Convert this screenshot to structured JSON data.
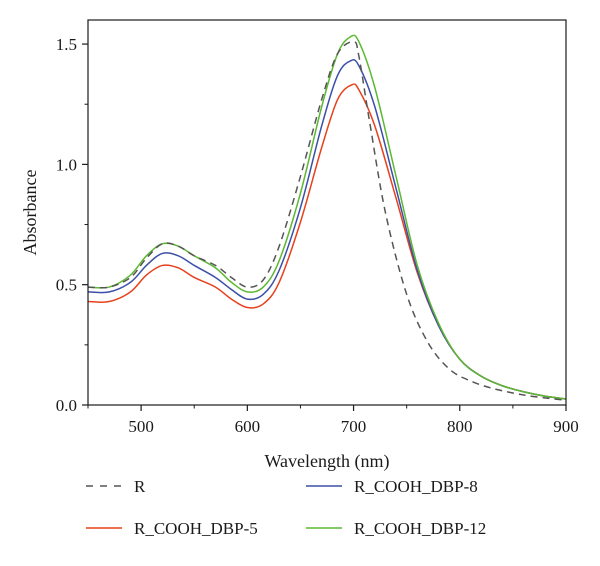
{
  "chart_data": {
    "type": "line",
    "xlabel": "Wavelength (nm)",
    "ylabel": "Absorbance",
    "xlim": [
      450,
      900
    ],
    "ylim": [
      0.0,
      1.6
    ],
    "xticks": [
      500,
      600,
      700,
      800,
      900
    ],
    "xtick_labels": [
      "500",
      "600",
      "700",
      "800",
      "900"
    ],
    "yticks": [
      0.0,
      0.5,
      1.0,
      1.5
    ],
    "ytick_labels": [
      "0.0",
      "0.5",
      "1.0",
      "1.5"
    ],
    "grid": false,
    "legend_position": "bottom",
    "series": [
      {
        "name": "R",
        "color": "#555555",
        "style": "dashed",
        "points": [
          [
            450,
            0.49
          ],
          [
            470,
            0.49
          ],
          [
            490,
            0.53
          ],
          [
            505,
            0.61
          ],
          [
            520,
            0.67
          ],
          [
            535,
            0.66
          ],
          [
            550,
            0.62
          ],
          [
            570,
            0.58
          ],
          [
            585,
            0.53
          ],
          [
            600,
            0.49
          ],
          [
            615,
            0.52
          ],
          [
            630,
            0.66
          ],
          [
            650,
            0.95
          ],
          [
            670,
            1.27
          ],
          [
            685,
            1.46
          ],
          [
            700,
            1.51
          ],
          [
            705,
            1.45
          ],
          [
            715,
            1.18
          ],
          [
            730,
            0.8
          ],
          [
            750,
            0.46
          ],
          [
            770,
            0.26
          ],
          [
            790,
            0.15
          ],
          [
            810,
            0.1
          ],
          [
            830,
            0.07
          ],
          [
            850,
            0.05
          ],
          [
            870,
            0.035
          ],
          [
            900,
            0.02
          ]
        ]
      },
      {
        "name": "R_COOH_DBP-5",
        "color": "#e8401c",
        "style": "solid",
        "points": [
          [
            450,
            0.43
          ],
          [
            470,
            0.43
          ],
          [
            490,
            0.47
          ],
          [
            505,
            0.54
          ],
          [
            520,
            0.58
          ],
          [
            535,
            0.57
          ],
          [
            550,
            0.53
          ],
          [
            570,
            0.49
          ],
          [
            585,
            0.44
          ],
          [
            600,
            0.405
          ],
          [
            615,
            0.42
          ],
          [
            630,
            0.51
          ],
          [
            650,
            0.76
          ],
          [
            670,
            1.07
          ],
          [
            685,
            1.27
          ],
          [
            698,
            1.33
          ],
          [
            705,
            1.31
          ],
          [
            720,
            1.16
          ],
          [
            740,
            0.86
          ],
          [
            760,
            0.55
          ],
          [
            780,
            0.33
          ],
          [
            800,
            0.19
          ],
          [
            820,
            0.12
          ],
          [
            840,
            0.08
          ],
          [
            860,
            0.055
          ],
          [
            880,
            0.037
          ],
          [
            900,
            0.025
          ]
        ]
      },
      {
        "name": "R_COOH_DBP-8",
        "color": "#3b4fa8",
        "style": "solid",
        "points": [
          [
            450,
            0.47
          ],
          [
            470,
            0.47
          ],
          [
            490,
            0.51
          ],
          [
            505,
            0.58
          ],
          [
            520,
            0.63
          ],
          [
            535,
            0.62
          ],
          [
            550,
            0.58
          ],
          [
            570,
            0.53
          ],
          [
            585,
            0.48
          ],
          [
            600,
            0.44
          ],
          [
            615,
            0.46
          ],
          [
            630,
            0.56
          ],
          [
            650,
            0.82
          ],
          [
            670,
            1.16
          ],
          [
            685,
            1.37
          ],
          [
            697,
            1.43
          ],
          [
            705,
            1.41
          ],
          [
            720,
            1.24
          ],
          [
            740,
            0.9
          ],
          [
            760,
            0.56
          ],
          [
            780,
            0.33
          ],
          [
            800,
            0.19
          ],
          [
            820,
            0.12
          ],
          [
            840,
            0.08
          ],
          [
            860,
            0.055
          ],
          [
            880,
            0.037
          ],
          [
            900,
            0.025
          ]
        ]
      },
      {
        "name": "R_COOH_DBP-12",
        "color": "#5cb832",
        "style": "solid",
        "points": [
          [
            450,
            0.49
          ],
          [
            470,
            0.49
          ],
          [
            490,
            0.54
          ],
          [
            505,
            0.62
          ],
          [
            520,
            0.67
          ],
          [
            535,
            0.66
          ],
          [
            550,
            0.62
          ],
          [
            570,
            0.57
          ],
          [
            585,
            0.51
          ],
          [
            600,
            0.47
          ],
          [
            615,
            0.49
          ],
          [
            630,
            0.6
          ],
          [
            650,
            0.88
          ],
          [
            670,
            1.24
          ],
          [
            685,
            1.46
          ],
          [
            697,
            1.53
          ],
          [
            705,
            1.51
          ],
          [
            720,
            1.32
          ],
          [
            740,
            0.95
          ],
          [
            760,
            0.58
          ],
          [
            780,
            0.34
          ],
          [
            800,
            0.19
          ],
          [
            820,
            0.12
          ],
          [
            840,
            0.08
          ],
          [
            860,
            0.055
          ],
          [
            880,
            0.037
          ],
          [
            900,
            0.025
          ]
        ]
      }
    ]
  }
}
